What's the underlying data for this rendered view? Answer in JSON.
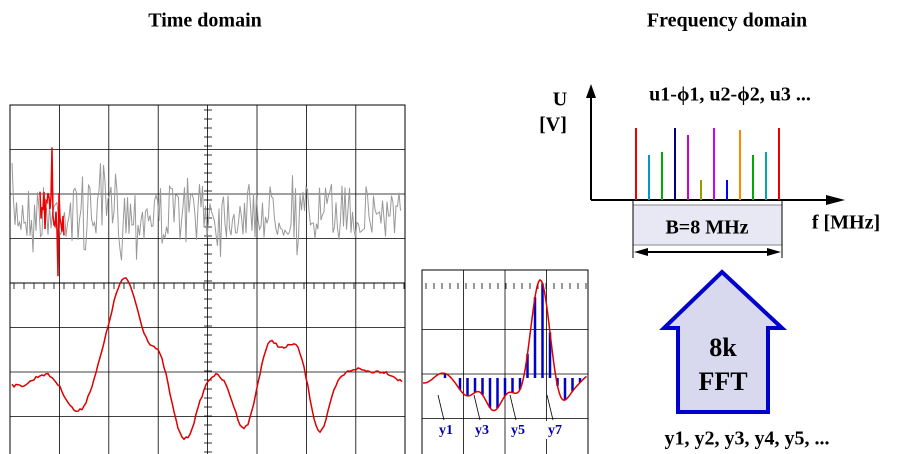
{
  "titles": {
    "time_domain": "Time domain",
    "frequency_domain": "Frequency domain"
  },
  "spectrum": {
    "y_label": "U",
    "y_unit": "[V]",
    "components": "u1-ϕ1,  u2-ϕ2,  u3 ...",
    "bandwidth": "B=8 MHz",
    "x_label": "f [MHz]"
  },
  "fft": {
    "size": "8k",
    "label": "FFT"
  },
  "samples": {
    "markers": [
      "y1",
      "y3",
      "y5",
      "y7"
    ],
    "sequence": "y1, y2, y3, y4, y5, ..."
  }
}
